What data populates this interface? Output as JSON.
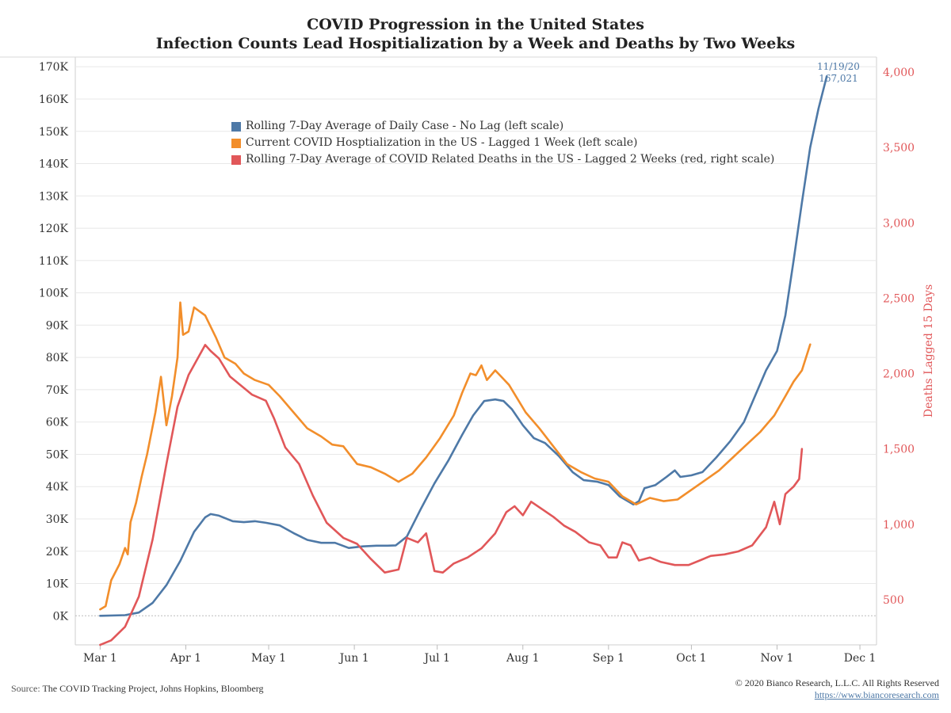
{
  "title": "COVID Progression in the United States",
  "subtitle": "Infection Counts Lead Hospitialization by a Week and Deaths by Two Weeks",
  "source_label": "Source:",
  "source_text": "The COVID Tracking Project, Johns Hopkins, Bloomberg",
  "copyright": "© 2020 Bianco Research, L.L.C. All Rights Reserved",
  "website": "https://www.biancoresearch.com",
  "annotation": {
    "date": "11/19/20",
    "value": "167,021"
  },
  "colors": {
    "cases": "#4e79a7",
    "hosp": "#f28e2b",
    "deaths": "#e15759",
    "right_axis": "#e15759",
    "grid": "#e8e8e8"
  },
  "chart_data": {
    "type": "line",
    "title": "COVID Progression in the United States",
    "subtitle": "Infection Counts Lead Hospitialization by a Week and Deaths by Two Weeks",
    "xlabel": "",
    "ylabel": "",
    "y2label": "Deaths Lagged 15 Days",
    "xlim": [
      "2020-02-21",
      "2020-12-07"
    ],
    "ylim": [
      -9000,
      173000
    ],
    "y2lim": [
      200,
      4100
    ],
    "x_ticks": [
      {
        "date": "2020-03-01",
        "label": "Mar 1"
      },
      {
        "date": "2020-04-01",
        "label": "Apr 1"
      },
      {
        "date": "2020-05-01",
        "label": "May 1"
      },
      {
        "date": "2020-06-01",
        "label": "Jun 1"
      },
      {
        "date": "2020-07-01",
        "label": "Jul 1"
      },
      {
        "date": "2020-08-01",
        "label": "Aug 1"
      },
      {
        "date": "2020-09-01",
        "label": "Sep 1"
      },
      {
        "date": "2020-10-01",
        "label": "Oct 1"
      },
      {
        "date": "2020-11-01",
        "label": "Nov 1"
      },
      {
        "date": "2020-12-01",
        "label": "Dec 1"
      }
    ],
    "y_ticks": [
      {
        "value": 0,
        "label": "0K"
      },
      {
        "value": 10000,
        "label": "10K"
      },
      {
        "value": 20000,
        "label": "20K"
      },
      {
        "value": 30000,
        "label": "30K"
      },
      {
        "value": 40000,
        "label": "40K"
      },
      {
        "value": 50000,
        "label": "50K"
      },
      {
        "value": 60000,
        "label": "60K"
      },
      {
        "value": 70000,
        "label": "70K"
      },
      {
        "value": 80000,
        "label": "80K"
      },
      {
        "value": 90000,
        "label": "90K"
      },
      {
        "value": 100000,
        "label": "100K"
      },
      {
        "value": 110000,
        "label": "110K"
      },
      {
        "value": 120000,
        "label": "120K"
      },
      {
        "value": 130000,
        "label": "130K"
      },
      {
        "value": 140000,
        "label": "140K"
      },
      {
        "value": 150000,
        "label": "150K"
      },
      {
        "value": 160000,
        "label": "160K"
      },
      {
        "value": 170000,
        "label": "170K"
      }
    ],
    "y2_ticks": [
      {
        "value": 500,
        "label": "500"
      },
      {
        "value": 1000,
        "label": "1,000"
      },
      {
        "value": 1500,
        "label": "1,500"
      },
      {
        "value": 2000,
        "label": "2,000"
      },
      {
        "value": 2500,
        "label": "2,500"
      },
      {
        "value": 3000,
        "label": "3,000"
      },
      {
        "value": 3500,
        "label": "3,500"
      },
      {
        "value": 4000,
        "label": "4,000"
      }
    ],
    "legend_position": "top-left",
    "grid": true,
    "series": [
      {
        "name": "Rolling 7-Day Average of Daily Case - No Lag (left scale)",
        "axis": "left",
        "points": [
          [
            "2020-03-01",
            0
          ],
          [
            "2020-03-10",
            200
          ],
          [
            "2020-03-15",
            1000
          ],
          [
            "2020-03-20",
            4000
          ],
          [
            "2020-03-25",
            9500
          ],
          [
            "2020-03-30",
            17000
          ],
          [
            "2020-04-04",
            26000
          ],
          [
            "2020-04-08",
            30500
          ],
          [
            "2020-04-10",
            31500
          ],
          [
            "2020-04-13",
            31000
          ],
          [
            "2020-04-18",
            29300
          ],
          [
            "2020-04-22",
            29000
          ],
          [
            "2020-04-26",
            29300
          ],
          [
            "2020-04-30",
            28800
          ],
          [
            "2020-05-05",
            28000
          ],
          [
            "2020-05-10",
            25600
          ],
          [
            "2020-05-15",
            23500
          ],
          [
            "2020-05-20",
            22600
          ],
          [
            "2020-05-25",
            22600
          ],
          [
            "2020-05-30",
            21000
          ],
          [
            "2020-06-04",
            21500
          ],
          [
            "2020-06-09",
            21700
          ],
          [
            "2020-06-13",
            21700
          ],
          [
            "2020-06-16",
            21800
          ],
          [
            "2020-06-20",
            24500
          ],
          [
            "2020-06-25",
            33000
          ],
          [
            "2020-06-30",
            41000
          ],
          [
            "2020-07-05",
            48000
          ],
          [
            "2020-07-10",
            56000
          ],
          [
            "2020-07-14",
            62000
          ],
          [
            "2020-07-18",
            66500
          ],
          [
            "2020-07-22",
            67000
          ],
          [
            "2020-07-25",
            66500
          ],
          [
            "2020-07-28",
            64000
          ],
          [
            "2020-08-01",
            59000
          ],
          [
            "2020-08-05",
            55000
          ],
          [
            "2020-08-09",
            53500
          ],
          [
            "2020-08-14",
            49500
          ],
          [
            "2020-08-19",
            44500
          ],
          [
            "2020-08-23",
            42000
          ],
          [
            "2020-08-28",
            41500
          ],
          [
            "2020-09-01",
            40500
          ],
          [
            "2020-09-05",
            37000
          ],
          [
            "2020-09-10",
            34500
          ],
          [
            "2020-09-12",
            35500
          ],
          [
            "2020-09-14",
            39500
          ],
          [
            "2020-09-18",
            40500
          ],
          [
            "2020-09-22",
            43000
          ],
          [
            "2020-09-25",
            45000
          ],
          [
            "2020-09-27",
            43000
          ],
          [
            "2020-10-01",
            43500
          ],
          [
            "2020-10-05",
            44500
          ],
          [
            "2020-10-10",
            49000
          ],
          [
            "2020-10-15",
            54000
          ],
          [
            "2020-10-20",
            60000
          ],
          [
            "2020-10-24",
            68000
          ],
          [
            "2020-10-28",
            76000
          ],
          [
            "2020-11-01",
            82000
          ],
          [
            "2020-11-04",
            93000
          ],
          [
            "2020-11-07",
            110000
          ],
          [
            "2020-11-10",
            128000
          ],
          [
            "2020-11-13",
            145000
          ],
          [
            "2020-11-16",
            157000
          ],
          [
            "2020-11-19",
            167021
          ]
        ]
      },
      {
        "name": "Current COVID Hosptialization in the US -  Lagged 1 Week (left scale)",
        "axis": "left",
        "points": [
          [
            "2020-03-01",
            2000
          ],
          [
            "2020-03-03",
            3000
          ],
          [
            "2020-03-05",
            11000
          ],
          [
            "2020-03-08",
            16000
          ],
          [
            "2020-03-10",
            21000
          ],
          [
            "2020-03-11",
            19000
          ],
          [
            "2020-03-12",
            29000
          ],
          [
            "2020-03-14",
            35000
          ],
          [
            "2020-03-16",
            43000
          ],
          [
            "2020-03-18",
            50000
          ],
          [
            "2020-03-21",
            63000
          ],
          [
            "2020-03-23",
            74000
          ],
          [
            "2020-03-25",
            59000
          ],
          [
            "2020-03-27",
            68000
          ],
          [
            "2020-03-29",
            80000
          ],
          [
            "2020-03-30",
            97000
          ],
          [
            "2020-03-31",
            87000
          ],
          [
            "2020-04-02",
            88000
          ],
          [
            "2020-04-04",
            95500
          ],
          [
            "2020-04-08",
            93000
          ],
          [
            "2020-04-12",
            86000
          ],
          [
            "2020-04-15",
            80000
          ],
          [
            "2020-04-19",
            78000
          ],
          [
            "2020-04-22",
            75000
          ],
          [
            "2020-04-26",
            73000
          ],
          [
            "2020-05-01",
            71500
          ],
          [
            "2020-05-05",
            68000
          ],
          [
            "2020-05-10",
            63000
          ],
          [
            "2020-05-15",
            58000
          ],
          [
            "2020-05-20",
            55500
          ],
          [
            "2020-05-24",
            53000
          ],
          [
            "2020-05-28",
            52500
          ],
          [
            "2020-06-02",
            47000
          ],
          [
            "2020-06-07",
            46000
          ],
          [
            "2020-06-12",
            44000
          ],
          [
            "2020-06-17",
            41500
          ],
          [
            "2020-06-22",
            44000
          ],
          [
            "2020-06-27",
            49000
          ],
          [
            "2020-07-02",
            55000
          ],
          [
            "2020-07-07",
            62000
          ],
          [
            "2020-07-10",
            69000
          ],
          [
            "2020-07-13",
            75000
          ],
          [
            "2020-07-15",
            74500
          ],
          [
            "2020-07-17",
            77500
          ],
          [
            "2020-07-19",
            73000
          ],
          [
            "2020-07-22",
            76000
          ],
          [
            "2020-07-27",
            71500
          ],
          [
            "2020-08-02",
            63000
          ],
          [
            "2020-08-07",
            58000
          ],
          [
            "2020-08-12",
            52500
          ],
          [
            "2020-08-17",
            47000
          ],
          [
            "2020-08-22",
            44500
          ],
          [
            "2020-08-27",
            42500
          ],
          [
            "2020-09-01",
            41500
          ],
          [
            "2020-09-06",
            37000
          ],
          [
            "2020-09-11",
            34500
          ],
          [
            "2020-09-16",
            36500
          ],
          [
            "2020-09-21",
            35500
          ],
          [
            "2020-09-26",
            36000
          ],
          [
            "2020-10-01",
            39000
          ],
          [
            "2020-10-06",
            42000
          ],
          [
            "2020-10-11",
            45000
          ],
          [
            "2020-10-16",
            49000
          ],
          [
            "2020-10-21",
            53000
          ],
          [
            "2020-10-26",
            57000
          ],
          [
            "2020-10-31",
            62000
          ],
          [
            "2020-11-04",
            68000
          ],
          [
            "2020-11-07",
            72500
          ],
          [
            "2020-11-10",
            76000
          ],
          [
            "2020-11-13",
            84000
          ]
        ]
      },
      {
        "name": "Rolling 7-Day Average of COVID Related Deaths in the US -  Lagged 2 Weeks (red, right scale)",
        "axis": "right",
        "points": [
          [
            "2020-03-01",
            200
          ],
          [
            "2020-03-05",
            230
          ],
          [
            "2020-03-10",
            320
          ],
          [
            "2020-03-15",
            520
          ],
          [
            "2020-03-20",
            900
          ],
          [
            "2020-03-25",
            1400
          ],
          [
            "2020-03-29",
            1780
          ],
          [
            "2020-04-02",
            1990
          ],
          [
            "2020-04-05",
            2090
          ],
          [
            "2020-04-08",
            2190
          ],
          [
            "2020-04-10",
            2150
          ],
          [
            "2020-04-13",
            2100
          ],
          [
            "2020-04-17",
            1980
          ],
          [
            "2020-04-21",
            1920
          ],
          [
            "2020-04-25",
            1860
          ],
          [
            "2020-04-30",
            1820
          ],
          [
            "2020-05-03",
            1700
          ],
          [
            "2020-05-07",
            1510
          ],
          [
            "2020-05-12",
            1400
          ],
          [
            "2020-05-17",
            1190
          ],
          [
            "2020-05-22",
            1010
          ],
          [
            "2020-05-28",
            910
          ],
          [
            "2020-06-02",
            870
          ],
          [
            "2020-06-07",
            770
          ],
          [
            "2020-06-12",
            680
          ],
          [
            "2020-06-17",
            700
          ],
          [
            "2020-06-20",
            910
          ],
          [
            "2020-06-24",
            880
          ],
          [
            "2020-06-27",
            940
          ],
          [
            "2020-06-30",
            690
          ],
          [
            "2020-07-03",
            680
          ],
          [
            "2020-07-07",
            740
          ],
          [
            "2020-07-12",
            780
          ],
          [
            "2020-07-17",
            840
          ],
          [
            "2020-07-22",
            940
          ],
          [
            "2020-07-26",
            1080
          ],
          [
            "2020-07-29",
            1120
          ],
          [
            "2020-08-01",
            1060
          ],
          [
            "2020-08-04",
            1150
          ],
          [
            "2020-08-08",
            1100
          ],
          [
            "2020-08-12",
            1050
          ],
          [
            "2020-08-16",
            990
          ],
          [
            "2020-08-20",
            950
          ],
          [
            "2020-08-25",
            880
          ],
          [
            "2020-08-29",
            860
          ],
          [
            "2020-09-01",
            780
          ],
          [
            "2020-09-04",
            780
          ],
          [
            "2020-09-06",
            880
          ],
          [
            "2020-09-09",
            860
          ],
          [
            "2020-09-12",
            760
          ],
          [
            "2020-09-16",
            780
          ],
          [
            "2020-09-20",
            750
          ],
          [
            "2020-09-25",
            730
          ],
          [
            "2020-09-30",
            730
          ],
          [
            "2020-10-04",
            760
          ],
          [
            "2020-10-08",
            790
          ],
          [
            "2020-10-13",
            800
          ],
          [
            "2020-10-18",
            820
          ],
          [
            "2020-10-23",
            860
          ],
          [
            "2020-10-28",
            980
          ],
          [
            "2020-10-31",
            1150
          ],
          [
            "2020-11-02",
            1000
          ],
          [
            "2020-11-04",
            1200
          ],
          [
            "2020-11-07",
            1250
          ],
          [
            "2020-11-09",
            1300
          ],
          [
            "2020-11-10",
            1500
          ]
        ]
      }
    ],
    "annotations": [
      {
        "date": "2020-11-19",
        "text": [
          "11/19/20",
          "167,021"
        ]
      }
    ]
  }
}
